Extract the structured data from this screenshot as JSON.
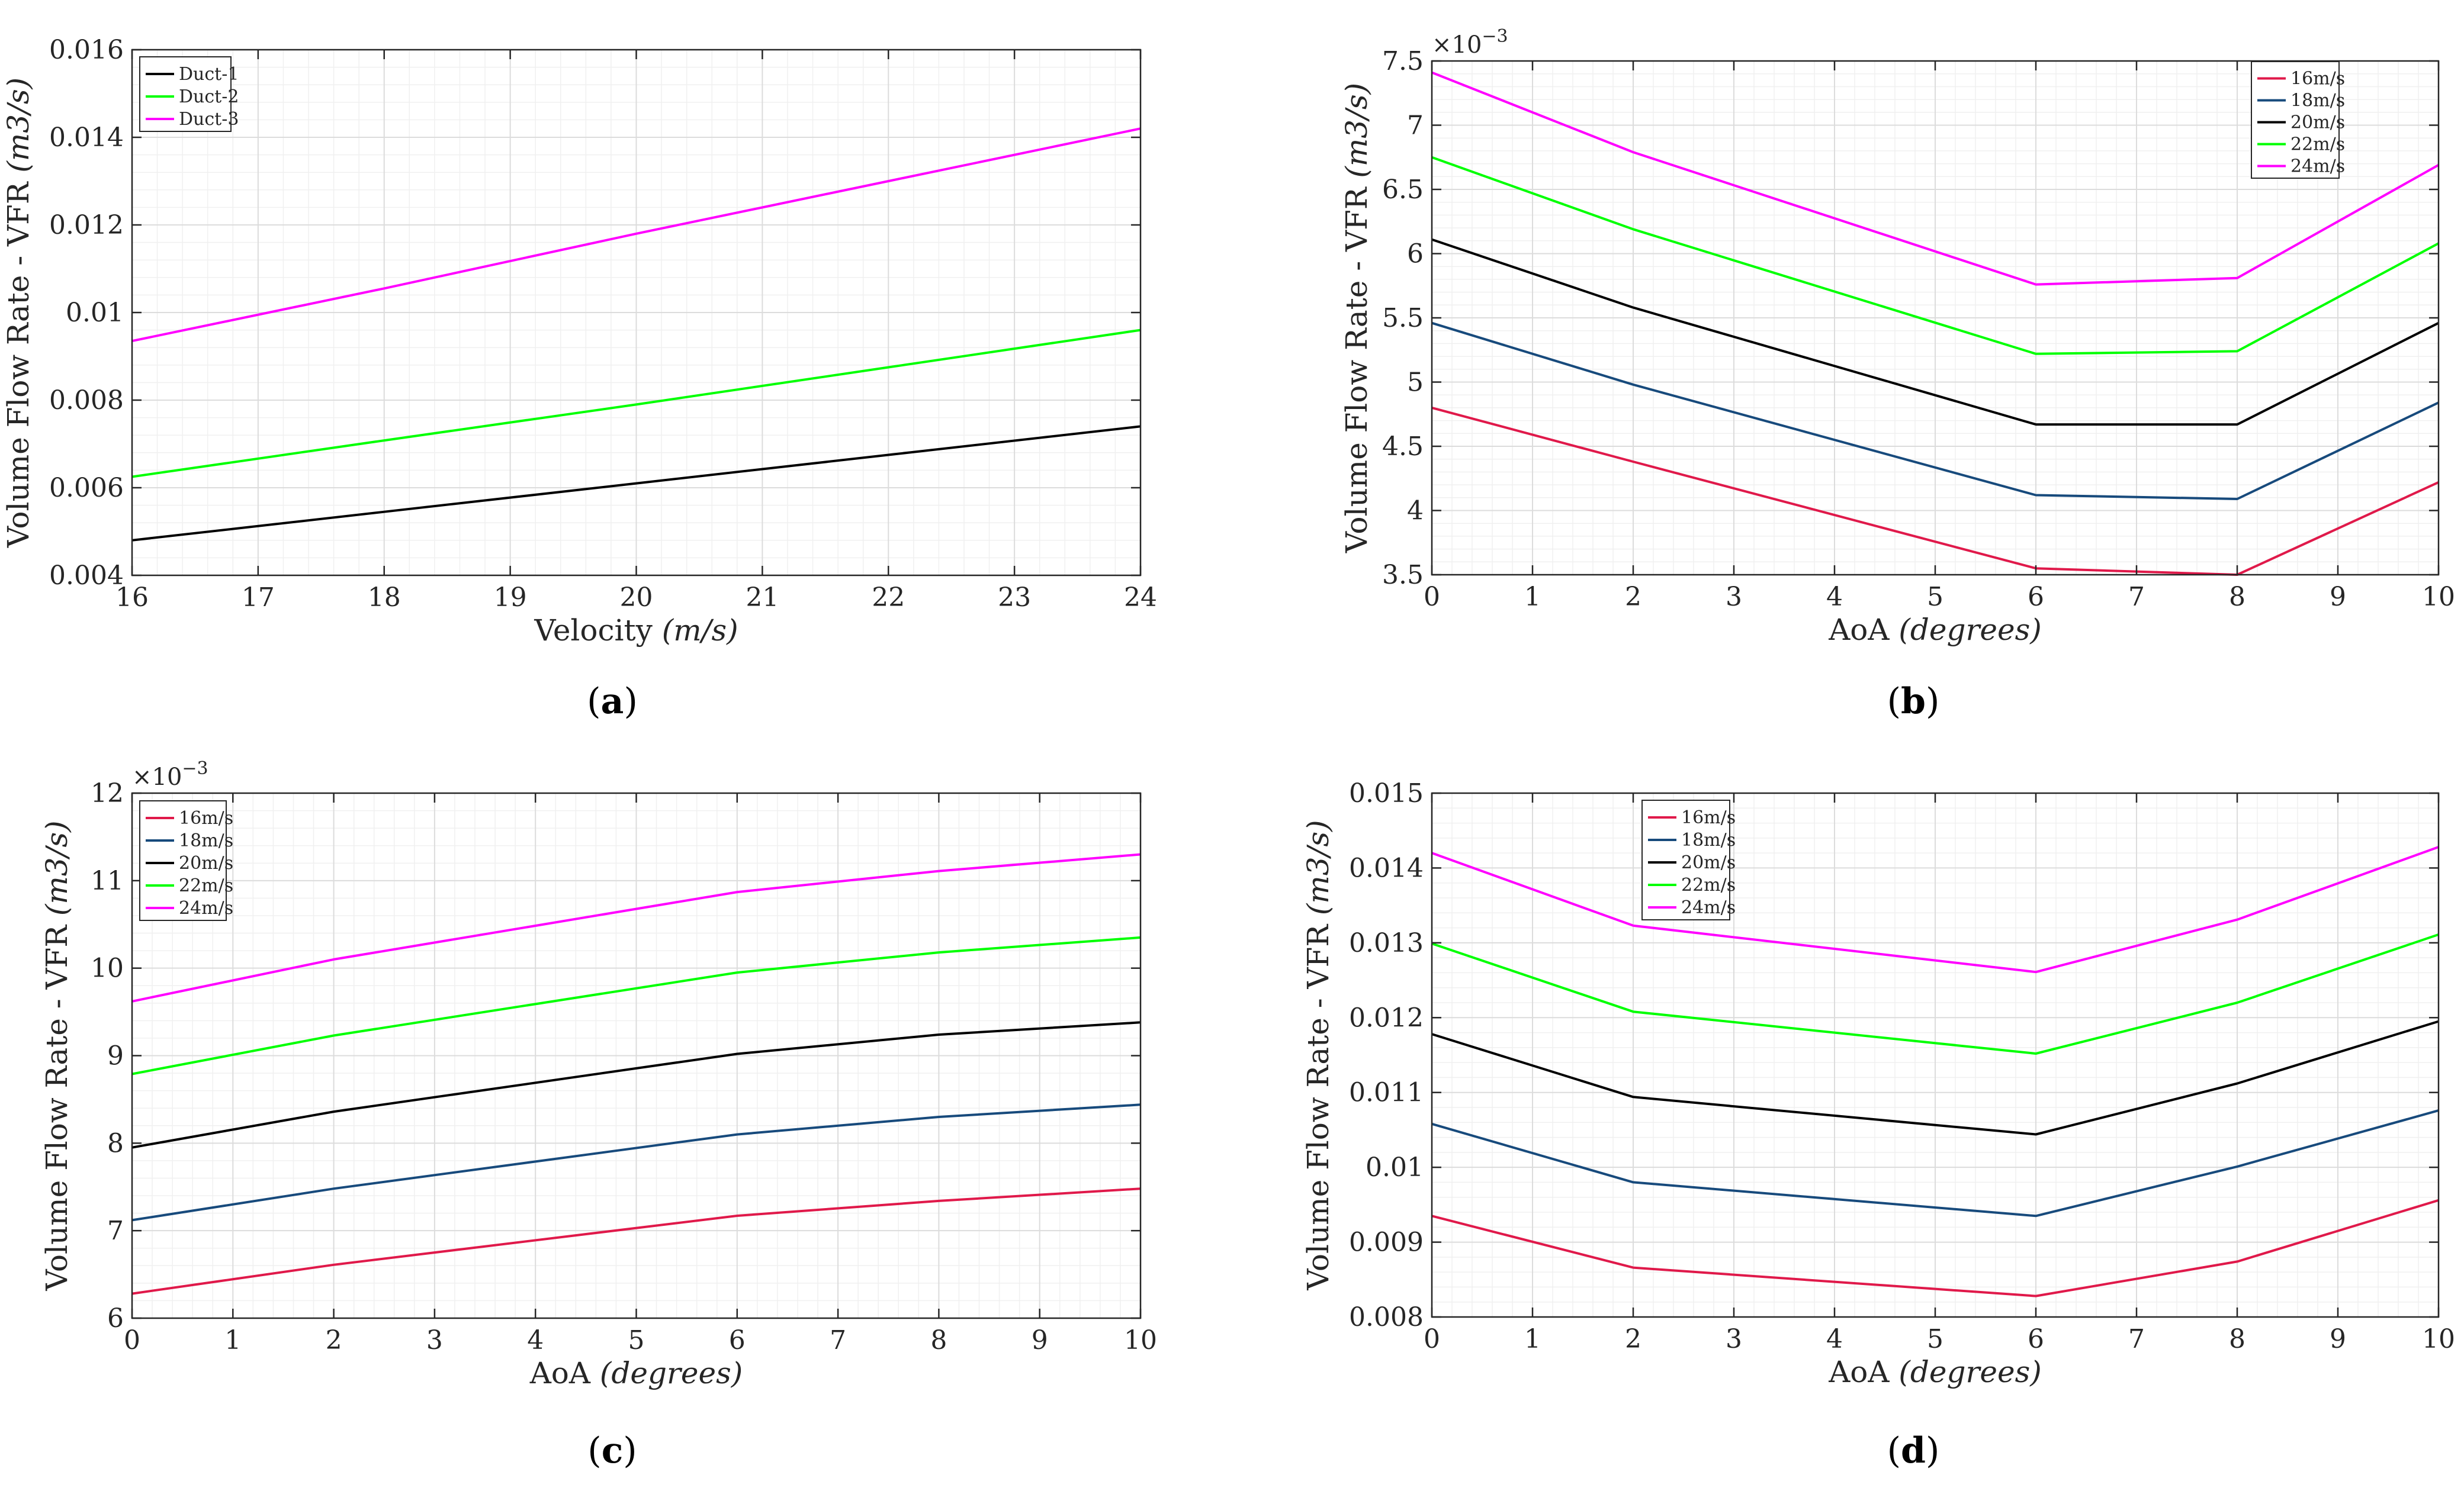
{
  "chart_data": [
    {
      "id": "a",
      "caption": "a",
      "type": "line",
      "xlabel_main": "Velocity ",
      "xlabel_unit": "(m/s)",
      "ylabel_main": "Volume Flow Rate - VFR ",
      "ylabel_unit": "(m3/s)",
      "xlim": [
        16,
        24
      ],
      "ylim": [
        0.004,
        0.016
      ],
      "xticks": [
        16,
        17,
        18,
        19,
        20,
        21,
        22,
        23,
        24
      ],
      "xtick_labels": [
        "16",
        "17",
        "18",
        "19",
        "20",
        "21",
        "22",
        "23",
        "24"
      ],
      "yticks": [
        0.004,
        0.006,
        0.008,
        0.01,
        0.012,
        0.014,
        0.016
      ],
      "ytick_labels": [
        "0.004",
        "0.006",
        "0.008",
        "0.01",
        "0.012",
        "0.014",
        "0.016"
      ],
      "exponent": "",
      "grid": true,
      "legend_position": "top-left",
      "series": [
        {
          "name": "Duct-1",
          "color": "#000000",
          "x": [
            16,
            18,
            20,
            22,
            24
          ],
          "values": [
            0.0048,
            0.00545,
            0.0061,
            0.00675,
            0.0074
          ]
        },
        {
          "name": "Duct-2",
          "color": "#00ff00",
          "x": [
            16,
            18,
            20,
            22,
            24
          ],
          "values": [
            0.00625,
            0.00708,
            0.0079,
            0.00875,
            0.0096
          ]
        },
        {
          "name": "Duct-3",
          "color": "#ff00ff",
          "x": [
            16,
            18,
            20,
            22,
            24
          ],
          "values": [
            0.00935,
            0.01055,
            0.0118,
            0.013,
            0.0142
          ]
        }
      ]
    },
    {
      "id": "b",
      "caption": "b",
      "type": "line",
      "xlabel_main": "AoA ",
      "xlabel_unit": "(degrees)",
      "ylabel_main": "Volume Flow Rate - VFR ",
      "ylabel_unit": "(m3/s)",
      "xlim": [
        0,
        10
      ],
      "ylim": [
        3.5,
        7.5
      ],
      "xticks": [
        0,
        1,
        2,
        3,
        4,
        5,
        6,
        7,
        8,
        9,
        10
      ],
      "xtick_labels": [
        "0",
        "1",
        "2",
        "3",
        "4",
        "5",
        "6",
        "7",
        "8",
        "9",
        "10"
      ],
      "yticks": [
        3.5,
        4,
        4.5,
        5,
        5.5,
        6,
        6.5,
        7,
        7.5
      ],
      "ytick_labels": [
        "3.5",
        "4",
        "4.5",
        "5",
        "5.5",
        "6",
        "6.5",
        "7",
        "7.5"
      ],
      "exponent": "×10",
      "exponent_power": "−3",
      "grid": true,
      "legend_position": "top-right",
      "series": [
        {
          "name": "16m/s",
          "color": "#e0194a",
          "x": [
            0,
            2,
            6,
            8,
            10
          ],
          "values": [
            4.8,
            4.38,
            3.55,
            3.5,
            4.22
          ]
        },
        {
          "name": "18m/s",
          "color": "#174a7c",
          "x": [
            0,
            2,
            6,
            8,
            10
          ],
          "values": [
            5.46,
            4.98,
            4.12,
            4.09,
            4.84
          ]
        },
        {
          "name": "20m/s",
          "color": "#000000",
          "x": [
            0,
            2,
            6,
            8,
            10
          ],
          "values": [
            6.11,
            5.58,
            4.67,
            4.67,
            5.46
          ]
        },
        {
          "name": "22m/s",
          "color": "#00ff00",
          "x": [
            0,
            2,
            6,
            8,
            10
          ],
          "values": [
            6.75,
            6.19,
            5.22,
            5.24,
            6.08
          ]
        },
        {
          "name": "24m/s",
          "color": "#ff00ff",
          "x": [
            0,
            2,
            6,
            8,
            10
          ],
          "values": [
            7.41,
            6.79,
            5.76,
            5.81,
            6.69
          ]
        }
      ]
    },
    {
      "id": "c",
      "caption": "c",
      "type": "line",
      "xlabel_main": "AoA ",
      "xlabel_unit": "(degrees)",
      "ylabel_main": "Volume Flow Rate - VFR ",
      "ylabel_unit": "(m3/s)",
      "xlim": [
        0,
        10
      ],
      "ylim": [
        6,
        12
      ],
      "xticks": [
        0,
        1,
        2,
        3,
        4,
        5,
        6,
        7,
        8,
        9,
        10
      ],
      "xtick_labels": [
        "0",
        "1",
        "2",
        "3",
        "4",
        "5",
        "6",
        "7",
        "8",
        "9",
        "10"
      ],
      "yticks": [
        6,
        7,
        8,
        9,
        10,
        11,
        12
      ],
      "ytick_labels": [
        "6",
        "7",
        "8",
        "9",
        "10",
        "11",
        "12"
      ],
      "exponent": "×10",
      "exponent_power": "−3",
      "grid": true,
      "legend_position": "top-left",
      "series": [
        {
          "name": "16m/s",
          "color": "#e0194a",
          "x": [
            0,
            2,
            6,
            8,
            10
          ],
          "values": [
            6.28,
            6.61,
            7.17,
            7.34,
            7.48
          ]
        },
        {
          "name": "18m/s",
          "color": "#174a7c",
          "x": [
            0,
            2,
            6,
            8,
            10
          ],
          "values": [
            7.12,
            7.48,
            8.1,
            8.3,
            8.44
          ]
        },
        {
          "name": "20m/s",
          "color": "#000000",
          "x": [
            0,
            2,
            6,
            8,
            10
          ],
          "values": [
            7.95,
            8.36,
            9.02,
            9.24,
            9.38
          ]
        },
        {
          "name": "22m/s",
          "color": "#00ff00",
          "x": [
            0,
            2,
            6,
            8,
            10
          ],
          "values": [
            8.79,
            9.23,
            9.95,
            10.18,
            10.35
          ]
        },
        {
          "name": "24m/s",
          "color": "#ff00ff",
          "x": [
            0,
            2,
            6,
            8,
            10
          ],
          "values": [
            9.62,
            10.1,
            10.87,
            11.11,
            11.3
          ]
        }
      ]
    },
    {
      "id": "d",
      "caption": "d",
      "type": "line",
      "xlabel_main": "AoA ",
      "xlabel_unit": "(degrees)",
      "ylabel_main": "Volume Flow Rate - VFR ",
      "ylabel_unit": "(m3/s)",
      "xlim": [
        0,
        10
      ],
      "ylim": [
        0.008,
        0.015
      ],
      "xticks": [
        0,
        1,
        2,
        3,
        4,
        5,
        6,
        7,
        8,
        9,
        10
      ],
      "xtick_labels": [
        "0",
        "1",
        "2",
        "3",
        "4",
        "5",
        "6",
        "7",
        "8",
        "9",
        "10"
      ],
      "yticks": [
        0.008,
        0.009,
        0.01,
        0.011,
        0.012,
        0.013,
        0.014,
        0.015
      ],
      "ytick_labels": [
        "0.008",
        "0.009",
        "0.01",
        "0.011",
        "0.012",
        "0.013",
        "0.014",
        "0.015"
      ],
      "exponent": "",
      "grid": true,
      "legend_position": "top-left",
      "series": [
        {
          "name": "16m/s",
          "color": "#e0194a",
          "x": [
            0,
            2,
            6,
            8,
            10
          ],
          "values": [
            0.00935,
            0.00866,
            0.00828,
            0.00874,
            0.00956
          ]
        },
        {
          "name": "18m/s",
          "color": "#174a7c",
          "x": [
            0,
            2,
            6,
            8,
            10
          ],
          "values": [
            0.01058,
            0.0098,
            0.00935,
            0.01001,
            0.01076
          ]
        },
        {
          "name": "20m/s",
          "color": "#000000",
          "x": [
            0,
            2,
            6,
            8,
            10
          ],
          "values": [
            0.01178,
            0.01094,
            0.01044,
            0.01112,
            0.01195
          ]
        },
        {
          "name": "22m/s",
          "color": "#00ff00",
          "x": [
            0,
            2,
            6,
            8,
            10
          ],
          "values": [
            0.01299,
            0.01208,
            0.01152,
            0.0122,
            0.01311
          ]
        },
        {
          "name": "24m/s",
          "color": "#ff00ff",
          "x": [
            0,
            2,
            6,
            8,
            10
          ],
          "values": [
            0.0142,
            0.01323,
            0.01261,
            0.01331,
            0.01428
          ]
        }
      ]
    }
  ]
}
